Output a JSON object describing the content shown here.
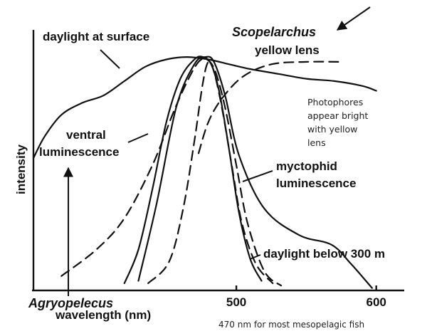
{
  "chart_data": {
    "type": "line",
    "xlabel": "wavelength (nm)",
    "ylabel": "intensity",
    "xlim": [
      355,
      620
    ],
    "ylim": [
      0,
      1
    ],
    "x_ticks": [
      {
        "value": 500,
        "label": "500"
      },
      {
        "value": 600,
        "label": "600"
      }
    ],
    "grid": false,
    "series": [
      {
        "name": "daylight at surface",
        "style": "solid",
        "x": [
          355,
          363,
          375,
          390,
          405,
          420,
          435,
          450,
          465,
          480,
          495,
          510,
          530,
          550,
          570,
          590,
          600
        ],
        "y": [
          0.55,
          0.64,
          0.73,
          0.78,
          0.81,
          0.87,
          0.93,
          0.96,
          0.97,
          0.96,
          0.94,
          0.92,
          0.9,
          0.88,
          0.87,
          0.85,
          0.83
        ]
      },
      {
        "name": "ventral luminescence",
        "style": "solid",
        "x": [
          420,
          430,
          440,
          450,
          460,
          470,
          476,
          482,
          488,
          495,
          502,
          510,
          518
        ],
        "y": [
          0.03,
          0.17,
          0.42,
          0.7,
          0.88,
          0.96,
          0.97,
          0.94,
          0.82,
          0.58,
          0.32,
          0.13,
          0.04
        ]
      },
      {
        "name": "myctophid luminescence",
        "style": "solid",
        "x": [
          430,
          443,
          457,
          470,
          478,
          484,
          492,
          502,
          520,
          545,
          568,
          582,
          597
        ],
        "y": [
          0.04,
          0.36,
          0.76,
          0.94,
          0.97,
          0.95,
          0.81,
          0.56,
          0.34,
          0.23,
          0.19,
          0.11,
          0.01
        ]
      },
      {
        "name": "Agryopelecus",
        "style": "dashed",
        "x": [
          375,
          400,
          420,
          440,
          455,
          465,
          473,
          479,
          485,
          492,
          500,
          508,
          520,
          532
        ],
        "y": [
          0.06,
          0.17,
          0.3,
          0.52,
          0.74,
          0.87,
          0.95,
          0.96,
          0.91,
          0.76,
          0.52,
          0.28,
          0.08,
          0.02
        ]
      },
      {
        "name": "daylight below 300 m",
        "style": "dashed",
        "x": [
          437,
          452,
          462,
          470,
          476,
          480,
          484,
          490,
          497,
          504,
          514,
          526
        ],
        "y": [
          0.03,
          0.12,
          0.34,
          0.62,
          0.86,
          0.95,
          0.91,
          0.75,
          0.51,
          0.28,
          0.11,
          0.03
        ]
      },
      {
        "name": "Scopelarchus yellow lens",
        "style": "dashed",
        "x": [
          473,
          480,
          490,
          505,
          525,
          550,
          575
        ],
        "y": [
          0.57,
          0.7,
          0.8,
          0.89,
          0.94,
          0.95,
          0.95
        ]
      }
    ],
    "annotations": {
      "daylight_surface": "daylight at surface",
      "scopelarchus": "Scopelarchus",
      "yellow_lens": "yellow lens",
      "ventral_1": "ventral",
      "ventral_2": "luminescence",
      "myctophid_1": "myctophid",
      "myctophid_2": "luminescence",
      "daylight_300": "daylight below 300 m",
      "agryopelecus": "Agryopelecus",
      "photophores": [
        "Photophores",
        "appear bright",
        "with yellow",
        "lens"
      ],
      "mesopelagic": "470 nm for most mesopelagic fish"
    }
  }
}
